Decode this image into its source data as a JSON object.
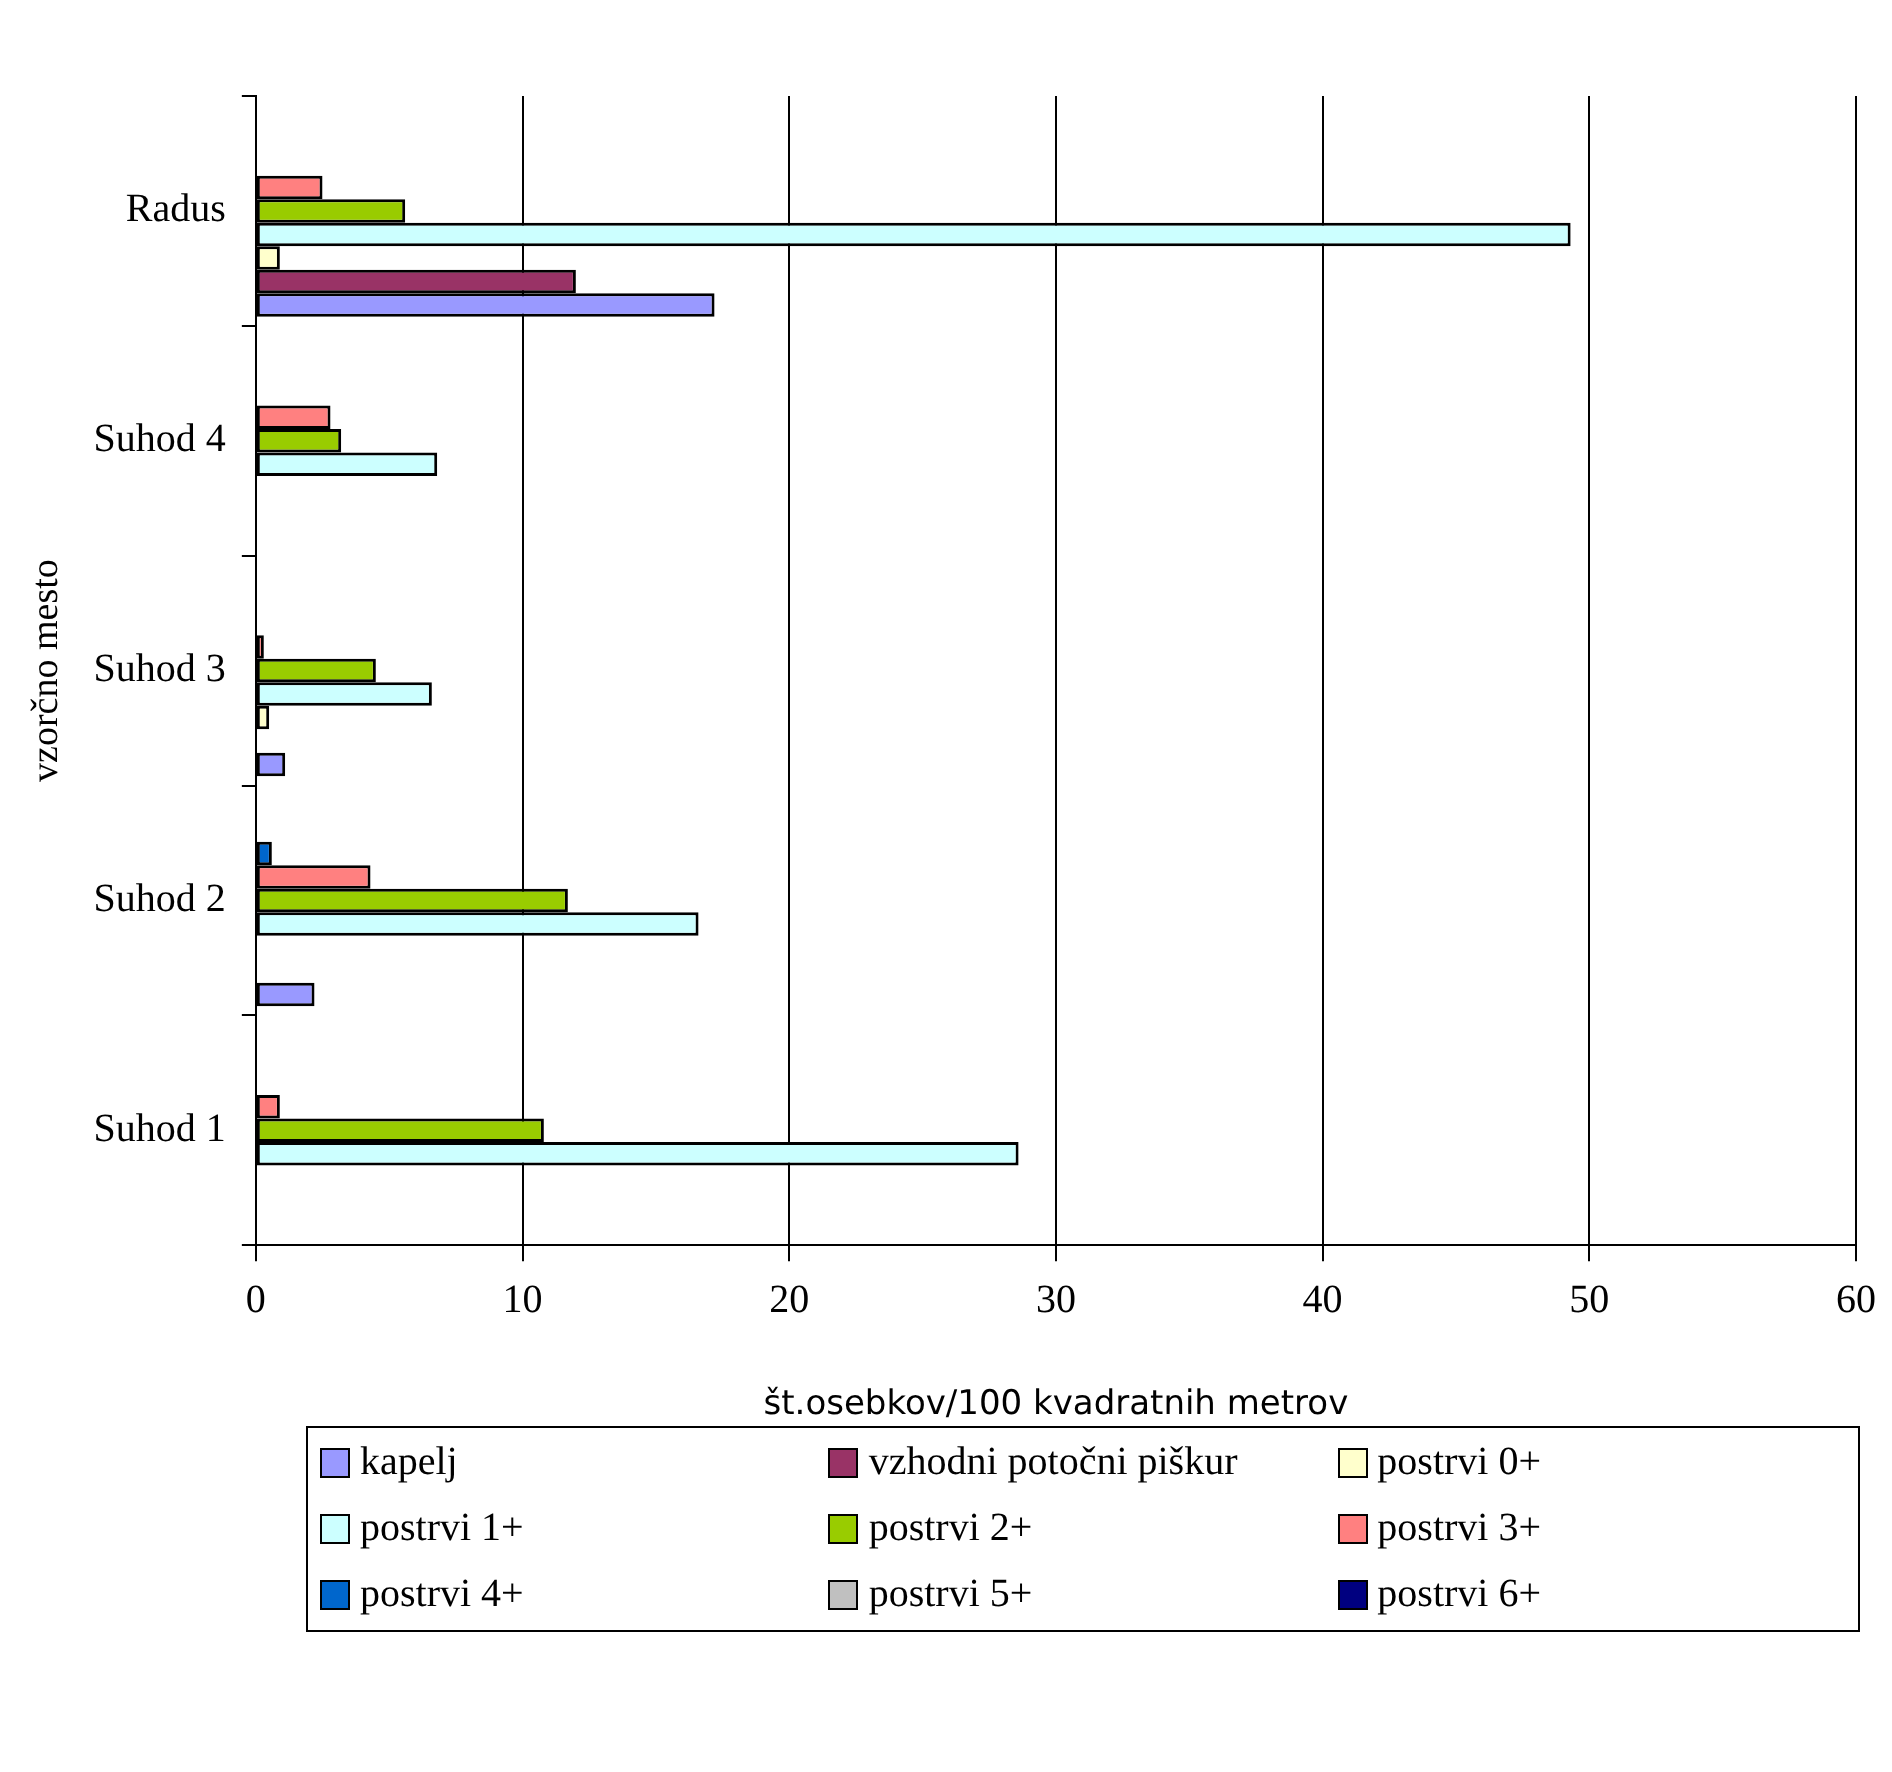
{
  "chart_data": {
    "type": "bar",
    "orientation": "horizontal",
    "xlabel": "št.osebkov/100 kvadratnih metrov",
    "ylabel": "vzorčno mesto",
    "categories": [
      "Radus",
      "Suhod 4",
      "Suhod 3",
      "Suhod 2",
      "Suhod 1"
    ],
    "series": [
      {
        "name": "kapelj",
        "color": "#9999ff",
        "values": [
          17.2,
          0,
          1.1,
          2.2,
          0
        ]
      },
      {
        "name": "vzhodni potočni piškur",
        "color": "#993366",
        "values": [
          12.0,
          0,
          0,
          0,
          0
        ]
      },
      {
        "name": "postrvi 0+",
        "color": "#ffffcc",
        "values": [
          0.9,
          0,
          0.5,
          0,
          0
        ]
      },
      {
        "name": "postrvi 1+",
        "color": "#ccffff",
        "values": [
          49.3,
          6.8,
          6.6,
          16.6,
          28.6
        ]
      },
      {
        "name": "postrvi 2+",
        "color": "#99cc00",
        "values": [
          5.6,
          3.2,
          4.5,
          11.7,
          10.8
        ]
      },
      {
        "name": "postrvi 3+",
        "color": "#ff8080",
        "values": [
          2.5,
          2.8,
          0.3,
          4.3,
          0.9
        ]
      },
      {
        "name": "postrvi 4+",
        "color": "#0066cc",
        "values": [
          0,
          0,
          0,
          0.6,
          0
        ]
      },
      {
        "name": "postrvi 5+",
        "color": "#c0c0c0",
        "values": [
          0,
          0,
          0,
          0,
          0
        ]
      },
      {
        "name": "postrvi 6+",
        "color": "#000080",
        "values": [
          0,
          0,
          0,
          0,
          0
        ]
      }
    ],
    "xlim": [
      0,
      60
    ],
    "xticks": [
      0,
      10,
      20,
      30,
      40,
      50,
      60
    ],
    "grid": "x",
    "legend": "bottom"
  }
}
